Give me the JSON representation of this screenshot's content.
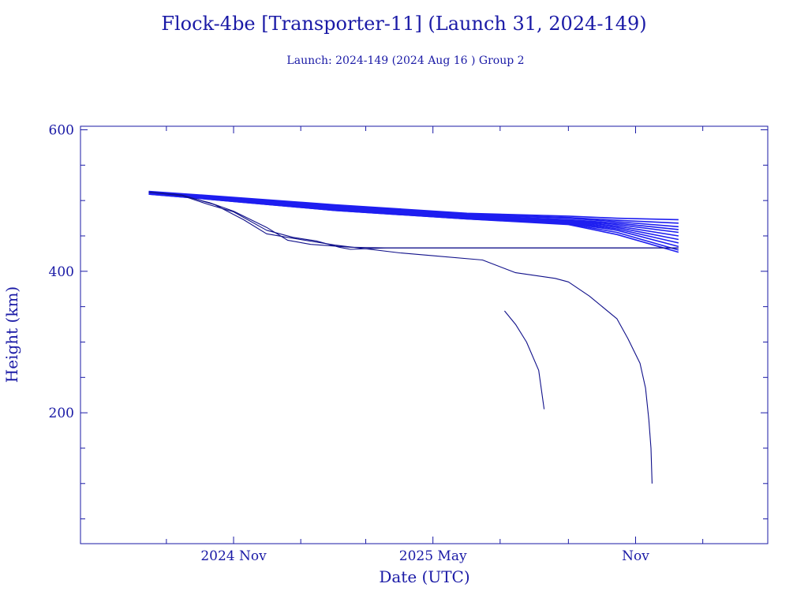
{
  "chart_data": {
    "type": "line",
    "title": "Flock-4be [Transporter-11] (Launch 31, 2024-149)",
    "subtitle": "Launch: 2024-149  (2024 Aug 16 )  Group 2",
    "xlabel": "Date (UTC)",
    "ylabel": "Height (km)",
    "x_unit": "date",
    "xlim": [
      "2024-06-15",
      "2026-03-01"
    ],
    "ylim": [
      15,
      605
    ],
    "x_tick_labels": [
      {
        "date": "2024-11-01",
        "label": "2024 Nov"
      },
      {
        "date": "2025-05-01",
        "label": "2025 May"
      },
      {
        "date": "2025-11-01",
        "label": "Nov"
      }
    ],
    "x_minor_ticks": [
      "2024-09-01",
      "2025-01-01",
      "2025-03-01",
      "2025-07-01",
      "2025-09-01",
      "2026-01-01"
    ],
    "y_tick_labels": [
      200,
      400,
      600
    ],
    "y_minor_ticks": [
      50,
      100,
      150,
      250,
      300,
      350,
      450,
      500,
      550
    ],
    "grid": false,
    "legend": "none",
    "colors": {
      "axis": "#1a1aa6",
      "line": "#10108a",
      "band": "#1e1ef0"
    },
    "series": [
      {
        "x": [
          "2024-08-16",
          "2024-10-01",
          "2025-02-01",
          "2025-06-01",
          "2025-09-01",
          "2025-10-15",
          "2025-12-10"
        ],
        "y": [
          513,
          508,
          494,
          482,
          478,
          475,
          473
        ]
      },
      {
        "x": [
          "2024-08-16",
          "2024-10-01",
          "2025-02-01",
          "2025-06-01",
          "2025-09-01",
          "2025-10-15",
          "2025-12-10"
        ],
        "y": [
          512,
          507,
          493,
          481,
          476,
          472,
          468
        ]
      },
      {
        "x": [
          "2024-08-16",
          "2024-10-01",
          "2025-02-01",
          "2025-06-01",
          "2025-09-01",
          "2025-10-15",
          "2025-12-10"
        ],
        "y": [
          512,
          507,
          492,
          480,
          475,
          470,
          463
        ]
      },
      {
        "x": [
          "2024-08-16",
          "2024-10-01",
          "2025-02-01",
          "2025-06-01",
          "2025-09-01",
          "2025-10-15",
          "2025-12-10"
        ],
        "y": [
          511,
          506,
          491,
          479,
          473,
          468,
          459
        ]
      },
      {
        "x": [
          "2024-08-16",
          "2024-10-01",
          "2025-02-01",
          "2025-06-01",
          "2025-09-01",
          "2025-10-15",
          "2025-12-10"
        ],
        "y": [
          511,
          506,
          490,
          478,
          472,
          466,
          455
        ]
      },
      {
        "x": [
          "2024-08-16",
          "2024-10-01",
          "2025-02-01",
          "2025-06-01",
          "2025-09-01",
          "2025-10-15",
          "2025-12-10"
        ],
        "y": [
          511,
          505,
          489,
          477,
          471,
          464,
          450
        ]
      },
      {
        "x": [
          "2024-08-16",
          "2024-10-01",
          "2025-02-01",
          "2025-06-01",
          "2025-09-01",
          "2025-10-15",
          "2025-12-10"
        ],
        "y": [
          510,
          505,
          488,
          476,
          470,
          462,
          445
        ]
      },
      {
        "x": [
          "2024-08-16",
          "2024-10-01",
          "2025-02-01",
          "2025-06-01",
          "2025-09-01",
          "2025-10-15",
          "2025-12-10"
        ],
        "y": [
          510,
          504,
          487,
          475,
          469,
          460,
          440
        ]
      },
      {
        "x": [
          "2024-08-16",
          "2024-10-01",
          "2025-02-01",
          "2025-06-01",
          "2025-09-01",
          "2025-10-15",
          "2025-12-10"
        ],
        "y": [
          510,
          504,
          487,
          475,
          468,
          458,
          435
        ]
      },
      {
        "x": [
          "2024-08-16",
          "2024-10-01",
          "2025-02-01",
          "2025-06-01",
          "2025-09-01",
          "2025-10-15",
          "2025-12-10"
        ],
        "y": [
          509,
          503,
          486,
          474,
          467,
          455,
          430
        ]
      },
      {
        "x": [
          "2024-08-16",
          "2024-10-01",
          "2025-02-01",
          "2025-06-01",
          "2025-09-01",
          "2025-10-15",
          "2025-12-10"
        ],
        "y": [
          509,
          503,
          486,
          474,
          466,
          452,
          427
        ]
      },
      {
        "x": [
          "2024-08-16",
          "2024-09-15",
          "2024-10-10",
          "2024-11-01",
          "2024-12-01",
          "2024-12-20",
          "2025-01-10",
          "2025-02-15",
          "2025-03-20",
          "2025-12-10"
        ],
        "y": [
          512,
          507,
          497,
          485,
          462,
          444,
          438,
          434,
          433,
          433
        ]
      },
      {
        "x": [
          "2024-08-16",
          "2024-09-15",
          "2024-10-10",
          "2024-11-01",
          "2024-12-01",
          "2024-12-25",
          "2025-01-15",
          "2025-02-05",
          "2025-02-15",
          "2025-03-20",
          "2025-12-10"
        ],
        "y": [
          512,
          507,
          494,
          484,
          458,
          448,
          443,
          434,
          431,
          433,
          433
        ]
      },
      {
        "x": [
          "2024-08-16",
          "2024-09-15",
          "2024-10-15",
          "2024-11-10",
          "2024-12-01",
          "2024-12-20",
          "2025-02-01",
          "2025-04-01",
          "2025-05-01",
          "2025-06-15",
          "2025-07-15",
          "2025-08-20",
          "2025-09-01",
          "2025-09-20",
          "2025-10-15",
          "2025-10-25",
          "2025-11-05",
          "2025-11-10",
          "2025-11-13",
          "2025-11-15",
          "2025-11-16"
        ],
        "y": [
          512,
          508,
          494,
          473,
          453,
          448,
          437,
          426,
          422,
          416,
          398,
          390,
          385,
          365,
          333,
          305,
          270,
          235,
          190,
          150,
          100
        ]
      },
      {
        "x": [
          "2025-07-05",
          "2025-07-15",
          "2025-07-25",
          "2025-08-05",
          "2025-08-10"
        ],
        "y": [
          344,
          325,
          300,
          260,
          205
        ]
      }
    ]
  }
}
